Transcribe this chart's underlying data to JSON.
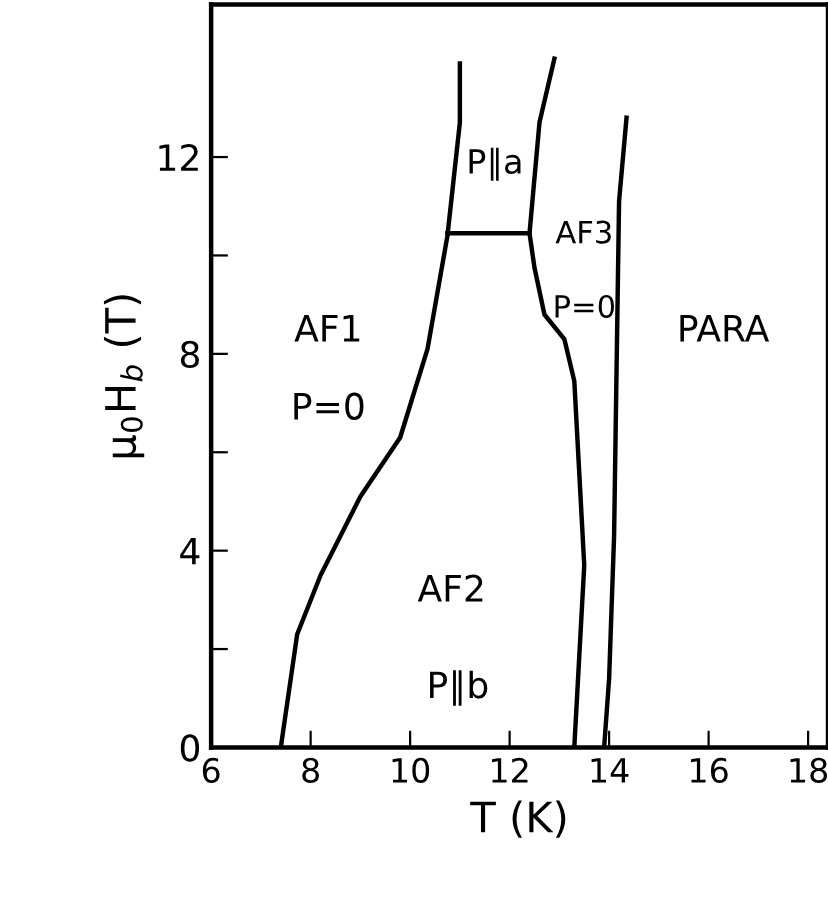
{
  "chart_data": {
    "type": "line",
    "xlabel": "T (K)",
    "ylabel": "μ$_{0}$H$_{b}$ (T)",
    "series": [
      {
        "color": "#000000",
        "x": [
          7.4,
          7.73,
          8.2,
          9.0,
          9.8,
          10.35,
          10.75,
          11.0,
          11.0
        ],
        "values": [
          0,
          2.3,
          3.5,
          5.1,
          6.3,
          8.1,
          10.4,
          12.7,
          13.9
        ]
      },
      {
        "color": "#000000",
        "x": [
          13.3,
          13.5,
          13.3,
          13.1,
          12.7,
          12.5,
          12.4,
          12.6,
          12.9
        ],
        "values": [
          0,
          3.7,
          7.45,
          8.3,
          8.8,
          9.75,
          10.45,
          12.7,
          14.0
        ]
      },
      {
        "color": "#000000",
        "x": [
          13.9,
          14.0,
          14.1,
          14.2,
          14.35
        ],
        "values": [
          0,
          1.4,
          4.3,
          11.1,
          12.8
        ]
      },
      {
        "color": "#000000",
        "x": [
          10.75,
          12.4
        ],
        "values": [
          10.45,
          10.45
        ]
      }
    ],
    "xlim": [
      6,
      18.4
    ],
    "ylim": [
      0,
      15.1
    ],
    "xticks": [
      6,
      8,
      10,
      12,
      14,
      16,
      18
    ],
    "yticks": [
      0,
      {
        "value": 2,
        "label": null
      },
      4,
      {
        "value": 6,
        "label": null
      },
      8,
      {
        "value": 10,
        "label": null
      },
      12
    ],
    "grid": false,
    "legend": false,
    "marker": "none",
    "line_style": "solid",
    "annotations": [
      "AF1",
      "P=0",
      "P∥a",
      "AF3",
      "P=0",
      "PARA",
      "AF2",
      "P∥b"
    ]
  }
}
